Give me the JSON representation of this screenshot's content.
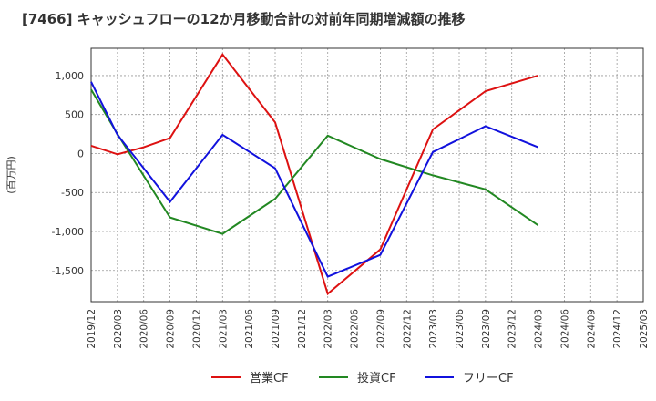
{
  "chart_data": {
    "type": "line",
    "title": "[7466]  キャッシュフローの12か月移動合計の対前年同期増減額の推移",
    "ylabel": "(百万円)",
    "xlabel": "",
    "categories": [
      "2019/12",
      "2020/03",
      "2020/06",
      "2020/09",
      "2020/12",
      "2021/03",
      "2021/06",
      "2021/09",
      "2021/12",
      "2022/03",
      "2022/06",
      "2022/09",
      "2022/12",
      "2023/03",
      "2023/06",
      "2023/09",
      "2023/12",
      "2024/03",
      "2024/06",
      "2024/09",
      "2024/12",
      "2025/03"
    ],
    "ylim": [
      -1900,
      1350
    ],
    "yticks": [
      1000,
      500,
      0,
      -500,
      -1000,
      -1500
    ],
    "ytick_labels": [
      "1,000",
      "500",
      "0",
      "-500",
      "-1,000",
      "-1,500"
    ],
    "grid": true,
    "legend_position": "bottom",
    "series": [
      {
        "name": "営業CF",
        "color": "#dd1111",
        "values": [
          100,
          -10,
          80,
          200,
          null,
          1270,
          null,
          400,
          null,
          -1800,
          null,
          -1230,
          null,
          310,
          null,
          800,
          null,
          1000,
          null,
          null,
          null,
          null
        ]
      },
      {
        "name": "投資CF",
        "color": "#228822",
        "values": [
          820,
          250,
          null,
          -820,
          null,
          -1030,
          null,
          -580,
          null,
          230,
          null,
          -70,
          null,
          -280,
          null,
          -460,
          null,
          -920,
          null,
          null,
          null,
          null
        ]
      },
      {
        "name": "フリーCF",
        "color": "#1111dd",
        "values": [
          920,
          240,
          null,
          -620,
          null,
          240,
          null,
          -190,
          null,
          -1580,
          null,
          -1300,
          null,
          20,
          null,
          350,
          null,
          80,
          null,
          null,
          null,
          null
        ]
      }
    ]
  }
}
